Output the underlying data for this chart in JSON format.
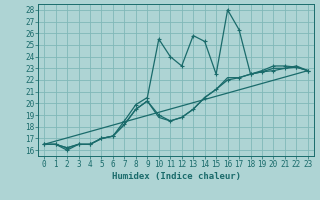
{
  "xlabel": "Humidex (Indice chaleur)",
  "xlim": [
    -0.5,
    23.5
  ],
  "ylim": [
    15.5,
    28.5
  ],
  "xticks": [
    0,
    1,
    2,
    3,
    4,
    5,
    6,
    7,
    8,
    9,
    10,
    11,
    12,
    13,
    14,
    15,
    16,
    17,
    18,
    19,
    20,
    21,
    22,
    23
  ],
  "yticks": [
    16,
    17,
    18,
    19,
    20,
    21,
    22,
    23,
    24,
    25,
    26,
    27,
    28
  ],
  "bg_color": "#aed4d4",
  "grid_color": "#80b8b8",
  "line_color": "#1a6b6b",
  "line1_x": [
    0,
    1,
    2,
    3,
    4,
    5,
    6,
    7,
    8,
    9,
    10,
    11,
    12,
    13,
    14,
    15,
    16,
    17,
    18,
    19,
    20,
    21,
    22,
    23
  ],
  "line1_y": [
    16.5,
    16.5,
    16.0,
    16.5,
    16.5,
    17.0,
    17.2,
    18.5,
    19.9,
    20.5,
    25.5,
    24.0,
    23.2,
    25.8,
    25.3,
    22.5,
    28.0,
    26.3,
    22.5,
    22.8,
    23.2,
    23.2,
    23.1,
    22.8
  ],
  "line2_x": [
    0,
    1,
    2,
    3,
    4,
    5,
    6,
    7,
    8,
    9,
    10,
    11,
    12,
    13,
    14,
    15,
    16,
    17,
    18,
    19,
    20,
    21,
    22,
    23
  ],
  "line2_y": [
    16.5,
    16.5,
    16.2,
    16.5,
    16.5,
    17.0,
    17.2,
    18.2,
    19.5,
    20.2,
    19.0,
    18.5,
    18.8,
    19.5,
    20.5,
    21.2,
    22.0,
    22.2,
    22.5,
    22.7,
    22.8,
    23.0,
    23.1,
    22.8
  ],
  "line3_x": [
    0,
    1,
    2,
    3,
    4,
    5,
    6,
    7,
    8,
    9,
    10,
    11,
    12,
    13,
    14,
    15,
    16,
    17,
    18,
    19,
    20,
    21,
    22,
    23
  ],
  "line3_y": [
    16.5,
    16.5,
    16.2,
    16.5,
    16.5,
    17.0,
    17.2,
    18.2,
    19.5,
    20.2,
    18.8,
    18.5,
    18.8,
    19.5,
    20.5,
    21.2,
    22.2,
    22.2,
    22.5,
    22.7,
    23.0,
    23.0,
    23.2,
    22.8
  ],
  "line4_x": [
    0,
    23
  ],
  "line4_y": [
    16.5,
    22.8
  ],
  "font_size_ticks": 5.5,
  "font_size_label": 6.5,
  "marker": "+"
}
